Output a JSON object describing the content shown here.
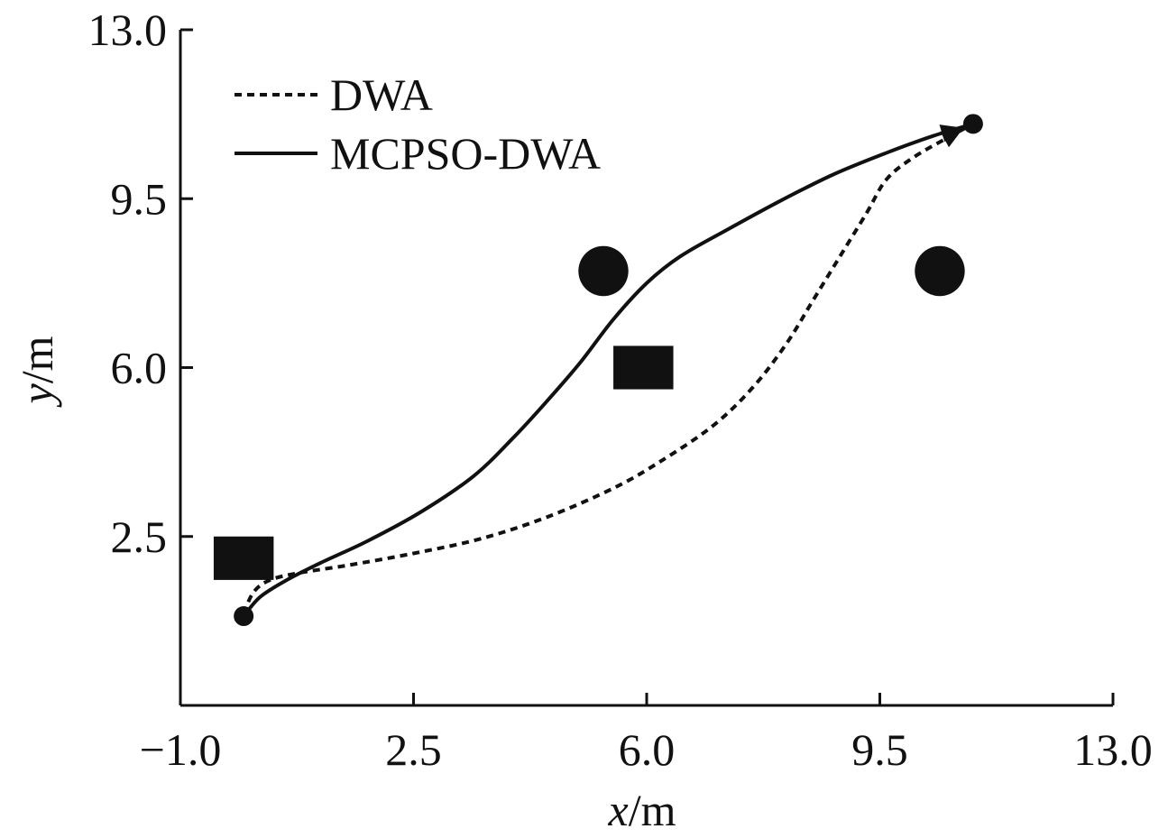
{
  "chart_data": {
    "type": "line",
    "title": "",
    "xlabel": {
      "var": "x",
      "unit": "/m"
    },
    "ylabel": {
      "var": "y",
      "unit": "/m"
    },
    "xlim": [
      -1.0,
      13.0
    ],
    "ylim": [
      -1.0,
      13.0
    ],
    "x_ticks": [
      {
        "value": -1.0,
        "label": "−1.0"
      },
      {
        "value": 2.5,
        "label": "2.5"
      },
      {
        "value": 6.0,
        "label": "6.0"
      },
      {
        "value": 9.5,
        "label": "9.5"
      },
      {
        "value": 13.0,
        "label": "13.0"
      }
    ],
    "y_ticks": [
      {
        "value": 13.0,
        "label": "13.0"
      },
      {
        "value": 9.5,
        "label": "9.5"
      },
      {
        "value": 6.0,
        "label": "6.0"
      },
      {
        "value": 2.5,
        "label": "2.5"
      }
    ],
    "grid": false,
    "legend_position": "top-left",
    "series": [
      {
        "name": "DWA",
        "style": "dashed",
        "x": [
          -0.05,
          0.1,
          0.35,
          0.8,
          1.5,
          2.5,
          3.5,
          4.5,
          5.5,
          6.2,
          7.0,
          7.6,
          8.1,
          8.5,
          8.9,
          9.3,
          9.6,
          10.0,
          10.5,
          10.9
        ],
        "y": [
          0.9,
          1.35,
          1.6,
          1.75,
          1.9,
          2.15,
          2.45,
          2.9,
          3.5,
          4.05,
          4.8,
          5.6,
          6.5,
          7.4,
          8.3,
          9.2,
          9.9,
          10.35,
          10.75,
          11.05
        ]
      },
      {
        "name": "MCPSO-DWA",
        "style": "solid",
        "x": [
          -0.05,
          0.2,
          0.6,
          1.1,
          1.8,
          2.6,
          3.4,
          4.0,
          4.5,
          5.0,
          5.5,
          6.0,
          6.5,
          7.2,
          8.0,
          8.8,
          9.6,
          10.3,
          10.9
        ],
        "y": [
          0.85,
          1.25,
          1.6,
          1.95,
          2.4,
          3.0,
          3.75,
          4.55,
          5.3,
          6.1,
          7.0,
          7.75,
          8.3,
          8.85,
          9.45,
          10.0,
          10.45,
          10.8,
          11.05
        ]
      }
    ],
    "endpoints": [
      {
        "name": "start",
        "x": -0.05,
        "y": 0.85
      },
      {
        "name": "goal",
        "x": 10.9,
        "y": 11.05
      }
    ],
    "obstacles": [
      {
        "shape": "square",
        "x": -0.05,
        "y": 2.05,
        "size": 0.9
      },
      {
        "shape": "square",
        "x": 5.95,
        "y": 6.0,
        "size": 0.9
      },
      {
        "shape": "circle",
        "x": 5.35,
        "y": 8.0,
        "diameter": 0.75
      },
      {
        "shape": "circle",
        "x": 10.4,
        "y": 8.0,
        "diameter": 0.75
      }
    ]
  }
}
